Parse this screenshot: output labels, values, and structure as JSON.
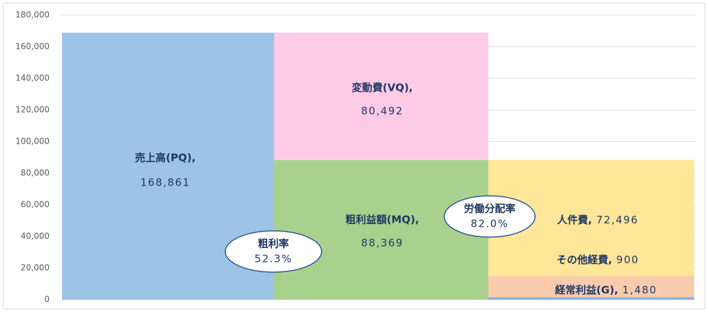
{
  "chart_data": {
    "type": "stacked_bar",
    "ylim": [
      0,
      180000
    ],
    "yticks": [
      {
        "value": 0,
        "label": "0"
      },
      {
        "value": 20000,
        "label": "20,000"
      },
      {
        "value": 40000,
        "label": "40,000"
      },
      {
        "value": 60000,
        "label": "60,000"
      },
      {
        "value": 80000,
        "label": "80,000"
      },
      {
        "value": 100000,
        "label": "100,000"
      },
      {
        "value": 120000,
        "label": "120,000"
      },
      {
        "value": 140000,
        "label": "140,000"
      },
      {
        "value": 160000,
        "label": "160,000"
      },
      {
        "value": 180000,
        "label": "180,000"
      }
    ],
    "stacks": [
      {
        "segments": [
          {
            "name": "売上高(PQ),",
            "value": 168861,
            "value_label": "168,861",
            "color": "#9dc3e6"
          }
        ]
      },
      {
        "segments": [
          {
            "name": "粗利益額(MQ),",
            "value": 88369,
            "value_label": "88,369",
            "color": "#a9d18e"
          },
          {
            "name": "変動費(VQ),",
            "value": 80492,
            "value_label": "80,492",
            "color": "#fecbe7"
          }
        ]
      },
      {
        "segments": [
          {
            "name": "経常利益(G),",
            "value": 1480,
            "value_label": "1,480",
            "color": "#8faadc"
          },
          {
            "value": 13493,
            "color": "#f8cbad"
          },
          {
            "name": "その他経費,",
            "value": 900,
            "value_label": "900",
            "color": "#ffe699"
          },
          {
            "name": "人件費,",
            "value": 72496,
            "value_label": "72,496",
            "color": "#ffe699"
          }
        ]
      }
    ],
    "annotations": [
      {
        "label": "粗利率",
        "value": 52.3,
        "value_label": "52.3%"
      },
      {
        "label": "労働分配率",
        "value": 82.0,
        "value_label": "82.0%"
      }
    ]
  }
}
